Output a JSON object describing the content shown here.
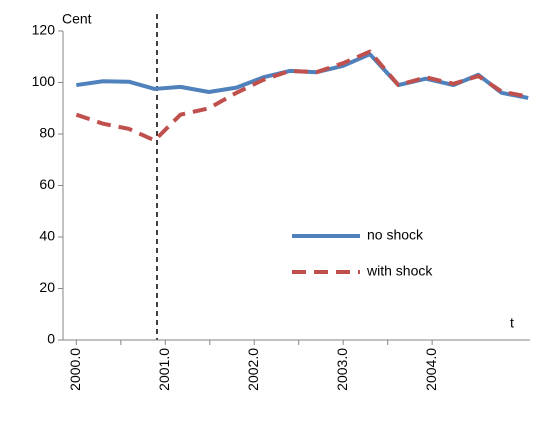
{
  "chart_data": {
    "type": "line",
    "y_label": "Cent",
    "x_label": "t",
    "x": [
      2000.0,
      2000.3,
      2000.59,
      2000.88,
      2001.17,
      2001.49,
      2001.8,
      2002.1,
      2002.4,
      2002.7,
      2003.0,
      2003.3,
      2003.62,
      2003.93,
      2004.24,
      2004.52,
      2004.78,
      2005.08
    ],
    "series": [
      {
        "name": "no shock",
        "color": "#4f81bd",
        "dash": false,
        "values": [
          99,
          100.5,
          100.3,
          97.5,
          98.3,
          96.3,
          98,
          102,
          104.5,
          104,
          106.5,
          111,
          99,
          101.5,
          99,
          103,
          96,
          94
        ]
      },
      {
        "name": "with shock",
        "color": "#c0504d",
        "dash": true,
        "values": [
          87.5,
          84,
          82,
          77.5,
          87.5,
          90,
          96,
          101,
          104.5,
          104,
          107.5,
          112,
          99,
          102,
          99.5,
          102.5,
          96.5,
          94.5
        ]
      }
    ],
    "xlim": [
      1999.85,
      2005.1
    ],
    "xticks": [
      {
        "value": 2000.0,
        "label": "2000.0"
      },
      2000.5,
      {
        "value": 2001.0,
        "label": "2001.0"
      },
      2001.5,
      {
        "value": 2002.0,
        "label": "2002.0"
      },
      2002.5,
      {
        "value": 2003.0,
        "label": "2003.0"
      },
      2003.5,
      {
        "value": 2004.0,
        "label": "2004.0"
      }
    ],
    "ylim": [
      0,
      120
    ],
    "yticks": [
      0,
      20,
      40,
      60,
      80,
      100,
      120
    ],
    "legend": "right"
  }
}
